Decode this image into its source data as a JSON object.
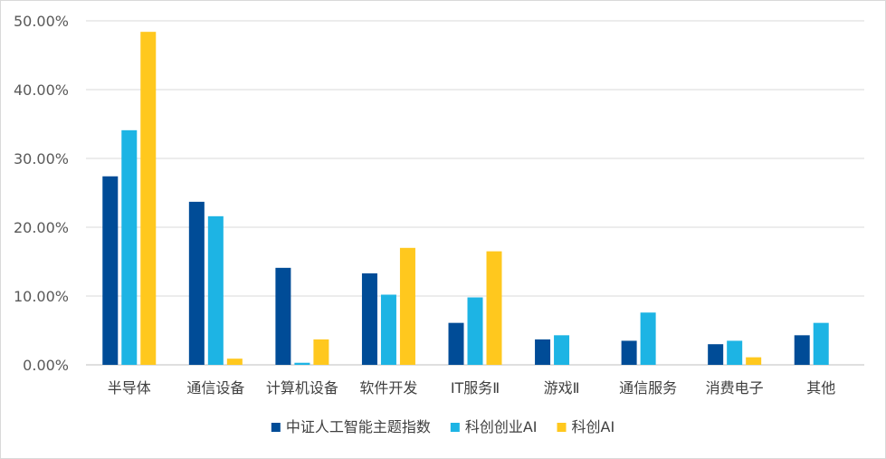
{
  "chart_data": {
    "type": "bar",
    "categories": [
      "半导体",
      "通信设备",
      "计算机设备",
      "软件开发",
      "IT服务Ⅱ",
      "游戏Ⅱ",
      "通信服务",
      "消费电子",
      "其他"
    ],
    "series": [
      {
        "name": "中证人工智能主题指数",
        "color": "#004C97",
        "values": [
          27.4,
          23.7,
          14.1,
          13.3,
          6.1,
          3.7,
          3.5,
          3.0,
          4.3
        ]
      },
      {
        "name": "科创创业AI",
        "color": "#1DB4E4",
        "values": [
          34.1,
          21.6,
          0.3,
          10.2,
          9.8,
          4.3,
          7.6,
          3.5,
          6.1
        ]
      },
      {
        "name": "科创AI",
        "color": "#FFC81E",
        "values": [
          48.4,
          0.9,
          3.7,
          17.0,
          16.5,
          0.0,
          0.0,
          1.1,
          null
        ]
      }
    ],
    "y_ticks": [
      "0.00%",
      "10.00%",
      "20.00%",
      "30.00%",
      "40.00%",
      "50.00%"
    ],
    "ylim": [
      0,
      50
    ],
    "grid": true,
    "legend_position": "bottom",
    "gridline_color": "#d9d9d9",
    "axis_color": "#bfbfbf"
  }
}
